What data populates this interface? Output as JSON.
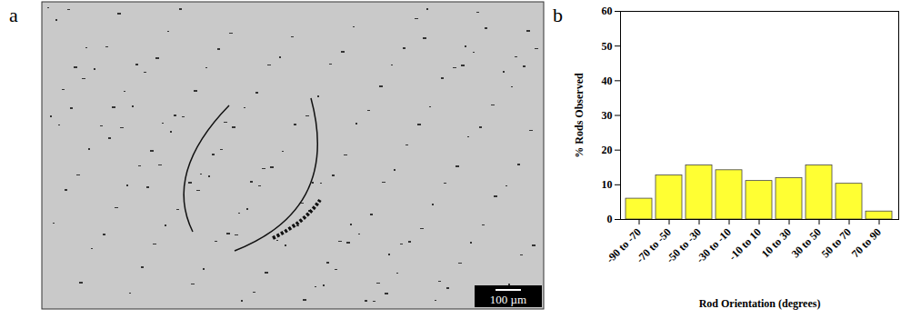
{
  "image_panel": {
    "label": "a",
    "scale_bar": "100 µm"
  },
  "chart_data": {
    "label": "b",
    "type": "bar",
    "categories": [
      "-90 to -70",
      "-70 to -50",
      "-50 to -30",
      "-30 to -10",
      "-10 to 10",
      "10 to 30",
      "30 to 50",
      "50 to 70",
      "70 to 90"
    ],
    "values": [
      6.0,
      12.7,
      15.6,
      14.2,
      11.1,
      11.9,
      15.6,
      10.3,
      2.3
    ],
    "color": "#ffff33",
    "xlabel": "Rod Orientation (degrees)",
    "ylabel": "% Rods Observed",
    "ylim": [
      0,
      60
    ],
    "yticks": [
      0,
      10,
      20,
      30,
      40,
      50,
      60
    ],
    "grid": false
  }
}
